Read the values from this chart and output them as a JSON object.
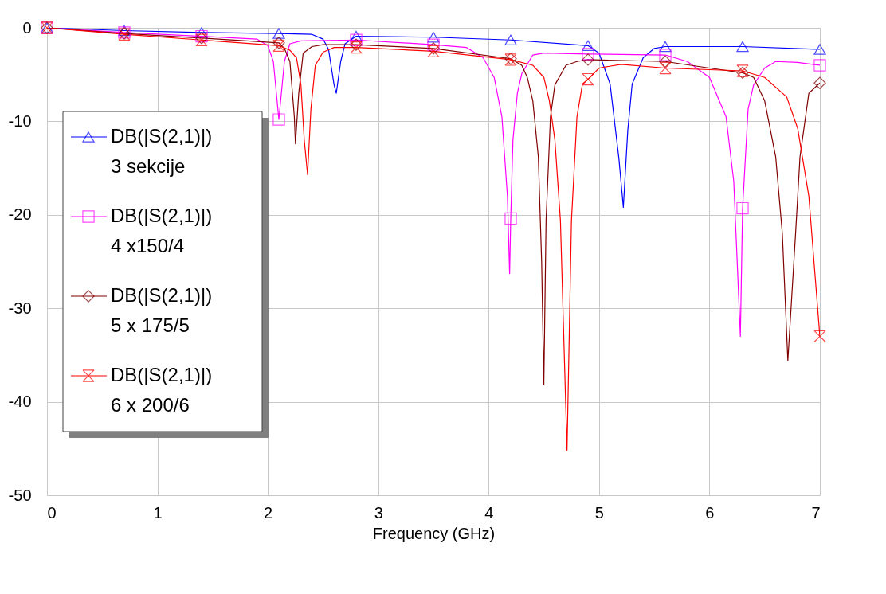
{
  "chart_data": {
    "type": "line",
    "xlabel": "Frequency (GHz)",
    "xlim": [
      0,
      7
    ],
    "xticks": [
      0,
      1,
      2,
      3,
      4,
      5,
      6,
      7
    ],
    "ylim": [
      -50,
      0
    ],
    "yticks": [
      -50,
      -40,
      -30,
      -20,
      -10,
      0
    ],
    "grid": true,
    "legend": "left",
    "line_style": "solid",
    "series": [
      {
        "name": "DB(|S(2,1)|)\n3 sekcije",
        "color": "#0000ff",
        "x": [
          0,
          0.7,
          1.4,
          2.1,
          2.4,
          2.5,
          2.55,
          2.6,
          2.62,
          2.66,
          2.7,
          2.8,
          3.5,
          4.2,
          4.9,
          5.0,
          5.1,
          5.18,
          5.22,
          5.26,
          5.3,
          5.4,
          5.5,
          5.6,
          6.3,
          7.0
        ],
        "values": [
          0,
          -0.3,
          -0.5,
          -0.6,
          -0.7,
          -1.2,
          -2.3,
          -6.1,
          -7.0,
          -3.6,
          -1.7,
          -0.9,
          -1.0,
          -1.3,
          -1.9,
          -2.7,
          -6.0,
          -14.0,
          -19.2,
          -11.0,
          -6.0,
          -3.2,
          -2.2,
          -2.0,
          -2.0,
          -2.3
        ]
      },
      {
        "name": "DB(|S(2,1)|)\n4 x150/4",
        "color": "#ff00ff",
        "x": [
          0,
          0.7,
          1.4,
          1.9,
          2.0,
          2.05,
          2.1,
          2.15,
          2.2,
          2.3,
          2.8,
          3.5,
          3.8,
          3.95,
          4.05,
          4.12,
          4.17,
          4.19,
          4.2,
          4.22,
          4.26,
          4.3,
          4.4,
          4.5,
          4.9,
          5.6,
          5.8,
          6.0,
          6.15,
          6.22,
          6.28,
          6.3,
          6.35,
          6.4,
          6.5,
          6.6,
          6.8,
          7.0
        ],
        "values": [
          0,
          -0.5,
          -0.9,
          -1.2,
          -1.9,
          -3.6,
          -9.8,
          -3.6,
          -1.7,
          -1.4,
          -1.3,
          -1.8,
          -2.1,
          -3.2,
          -5.3,
          -9.5,
          -18.0,
          -26.3,
          -20.4,
          -12.0,
          -7.0,
          -4.9,
          -2.9,
          -2.7,
          -2.8,
          -2.9,
          -3.6,
          -5.3,
          -9.5,
          -16.4,
          -33.0,
          -19.3,
          -8.7,
          -6.1,
          -4.3,
          -3.6,
          -3.7,
          -4.0
        ]
      },
      {
        "name": "DB(|S(2,1)|)\n5 x 175/5",
        "color": "#800000",
        "x": [
          0,
          0.7,
          1.4,
          2.1,
          2.15,
          2.2,
          2.24,
          2.25,
          2.28,
          2.32,
          2.4,
          2.5,
          2.8,
          3.5,
          4.2,
          4.3,
          4.35,
          4.4,
          4.45,
          4.48,
          4.5,
          4.52,
          4.56,
          4.6,
          4.7,
          4.8,
          4.9,
          5.6,
          6.0,
          6.3,
          6.4,
          6.5,
          6.6,
          6.66,
          6.71,
          6.78,
          6.82,
          6.9,
          7.0
        ],
        "values": [
          0,
          -0.6,
          -1.1,
          -1.6,
          -2.2,
          -3.6,
          -9.5,
          -12.4,
          -7.0,
          -2.7,
          -2.0,
          -1.8,
          -1.8,
          -2.2,
          -3.3,
          -4.0,
          -5.3,
          -7.8,
          -13.8,
          -25.0,
          -38.2,
          -20.6,
          -9.5,
          -6.1,
          -4.0,
          -3.6,
          -3.4,
          -3.6,
          -4.3,
          -4.8,
          -5.3,
          -7.8,
          -13.8,
          -22.0,
          -35.6,
          -22.0,
          -13.8,
          -7.0,
          -5.9
        ]
      },
      {
        "name": "DB(|S(2,1)|)\n6 x 200/6",
        "color": "#ff0000",
        "x": [
          0,
          0.7,
          1.4,
          2.1,
          2.2,
          2.26,
          2.3,
          2.33,
          2.36,
          2.39,
          2.43,
          2.5,
          2.6,
          2.8,
          3.5,
          4.2,
          4.4,
          4.5,
          4.55,
          4.6,
          4.65,
          4.71,
          4.75,
          4.8,
          4.85,
          4.9,
          5.0,
          5.2,
          5.6,
          6.3,
          6.5,
          6.7,
          6.8,
          6.9,
          7.0
        ],
        "values": [
          0,
          -0.7,
          -1.3,
          -1.9,
          -2.4,
          -3.2,
          -6.1,
          -12.0,
          -15.7,
          -8.7,
          -4.0,
          -2.6,
          -2.1,
          -2.1,
          -2.5,
          -3.4,
          -4.0,
          -5.3,
          -7.8,
          -12.0,
          -20.6,
          -45.2,
          -20.6,
          -9.5,
          -6.0,
          -5.5,
          -4.3,
          -3.9,
          -4.3,
          -4.6,
          -5.3,
          -7.4,
          -10.8,
          -18.0,
          -33.0
        ]
      },
      {
        "type": "scatter",
        "color": "#0000ff",
        "marker": "triangle",
        "x": [
          0,
          0.7,
          1.4,
          2.1,
          2.8,
          3.5,
          4.2,
          4.9,
          5.6,
          6.3,
          7.0
        ],
        "values": [
          0,
          -0.3,
          -0.5,
          -0.6,
          -0.9,
          -1.0,
          -1.3,
          -1.9,
          -2.0,
          -2.0,
          -2.3
        ]
      },
      {
        "type": "scatter",
        "color": "#ff00ff",
        "marker": "square",
        "x": [
          0,
          0.7,
          1.4,
          2.1,
          2.8,
          3.5,
          4.2,
          4.9,
          5.6,
          6.3,
          7.0
        ],
        "values": [
          0,
          -0.5,
          -0.9,
          -9.8,
          -1.3,
          -1.8,
          -20.4,
          -2.8,
          -2.9,
          -19.3,
          -4.0
        ]
      },
      {
        "type": "scatter",
        "color": "#800000",
        "marker": "diamond",
        "x": [
          0,
          0.7,
          1.4,
          2.1,
          2.8,
          3.5,
          4.2,
          4.9,
          5.6,
          6.3,
          7.0
        ],
        "values": [
          0,
          -0.6,
          -1.1,
          -1.6,
          -1.8,
          -2.2,
          -3.3,
          -3.4,
          -3.6,
          -4.8,
          -5.9
        ]
      },
      {
        "type": "scatter",
        "color": "#ff0000",
        "marker": "cross",
        "x": [
          0,
          0.7,
          1.4,
          2.1,
          2.8,
          3.5,
          4.2,
          4.9,
          5.6,
          6.3,
          7.0
        ],
        "values": [
          0,
          -0.7,
          -1.3,
          -1.9,
          -2.1,
          -2.5,
          -3.4,
          -5.5,
          -4.3,
          -4.6,
          -33.0
        ]
      }
    ]
  }
}
